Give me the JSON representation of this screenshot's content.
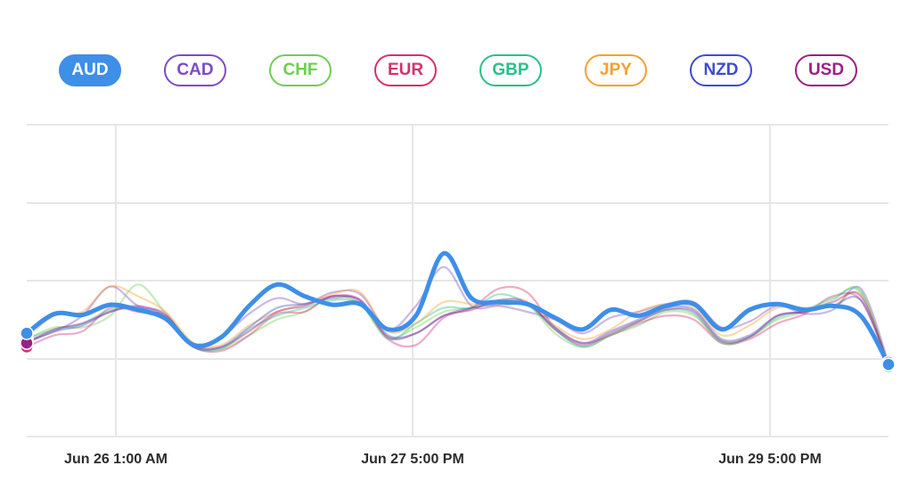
{
  "chart_data": {
    "type": "line",
    "x_ticks": [
      "Jun 26 1:00 AM",
      "Jun 27 5:00 PM",
      "Jun 29 5:00 PM"
    ],
    "active_series": "AUD",
    "grid": true,
    "series": [
      {
        "name": "AUD",
        "color": "#3d8fe8",
        "values": [
          26.5,
          31.5,
          31.2,
          33.8,
          32.5,
          30.2,
          23.5,
          25.5,
          33.5,
          39.0,
          36.0,
          33.8,
          34.0,
          27.5,
          31.0,
          47.0,
          35.5,
          34.5,
          34.0,
          30.5,
          27.5,
          32.5,
          31.0,
          33.5,
          34.0,
          27.5,
          32.5,
          34.0,
          32.5,
          33.5,
          31.0,
          18.5
        ]
      },
      {
        "name": "CAD",
        "color": "#7d4bc6",
        "values": [
          24.5,
          27.0,
          31.0,
          38.5,
          33.5,
          31.5,
          23.0,
          25.5,
          31.5,
          35.5,
          34.0,
          37.0,
          36.5,
          27.5,
          33.5,
          43.5,
          33.5,
          33.5,
          32.0,
          30.0,
          26.5,
          30.5,
          32.0,
          34.0,
          34.5,
          28.0,
          29.5,
          33.5,
          31.5,
          32.5,
          38.0,
          19.0
        ]
      },
      {
        "name": "CHF",
        "color": "#6fcf4f",
        "values": [
          25.0,
          28.0,
          28.0,
          31.0,
          39.0,
          31.5,
          23.5,
          22.5,
          26.0,
          30.0,
          32.0,
          36.0,
          34.0,
          25.5,
          28.0,
          32.0,
          33.0,
          35.0,
          34.0,
          26.5,
          23.0,
          26.0,
          28.5,
          32.0,
          31.0,
          24.5,
          25.5,
          30.0,
          32.0,
          35.0,
          37.5,
          18.0
        ]
      },
      {
        "name": "EUR",
        "color": "#d6306e",
        "values": [
          23.0,
          26.0,
          27.0,
          33.0,
          32.0,
          31.0,
          23.0,
          22.0,
          26.0,
          31.5,
          32.0,
          36.0,
          34.5,
          25.0,
          23.5,
          30.5,
          33.0,
          38.0,
          37.0,
          28.0,
          24.0,
          26.0,
          29.0,
          31.0,
          30.0,
          24.0,
          25.0,
          29.0,
          31.5,
          36.0,
          35.0,
          18.5
        ]
      },
      {
        "name": "GBP",
        "color": "#2bbf8a",
        "values": [
          25.0,
          27.5,
          29.0,
          32.5,
          33.0,
          30.0,
          23.0,
          22.5,
          27.5,
          31.0,
          33.0,
          35.0,
          34.0,
          25.0,
          29.0,
          33.0,
          33.0,
          36.5,
          34.0,
          27.5,
          23.0,
          26.0,
          29.5,
          32.5,
          31.5,
          24.0,
          25.5,
          30.5,
          32.5,
          35.5,
          37.0,
          18.0
        ]
      },
      {
        "name": "JPY",
        "color": "#f5a030",
        "values": [
          25.5,
          31.0,
          32.0,
          38.5,
          36.0,
          32.0,
          24.0,
          23.5,
          28.5,
          32.0,
          34.0,
          36.5,
          37.0,
          27.0,
          29.0,
          34.5,
          34.0,
          33.5,
          34.0,
          28.5,
          25.0,
          27.5,
          32.0,
          34.0,
          33.0,
          26.0,
          28.5,
          33.0,
          33.0,
          33.5,
          36.5,
          18.5
        ]
      },
      {
        "name": "NZD",
        "color": "#3f4bcf",
        "values": [
          24.0,
          27.0,
          28.5,
          32.0,
          33.0,
          30.5,
          23.0,
          23.0,
          28.0,
          33.0,
          34.0,
          35.5,
          35.0,
          26.0,
          26.5,
          31.0,
          33.0,
          34.0,
          34.0,
          28.0,
          24.0,
          27.0,
          30.0,
          33.0,
          32.5,
          25.0,
          26.0,
          31.0,
          32.0,
          33.5,
          35.0,
          18.5
        ]
      },
      {
        "name": "USD",
        "color": "#9b1f86",
        "values": [
          24.0,
          27.5,
          29.0,
          32.0,
          33.5,
          31.0,
          23.5,
          23.0,
          27.0,
          32.0,
          33.5,
          36.0,
          35.0,
          25.5,
          26.5,
          31.0,
          32.5,
          35.0,
          34.5,
          27.5,
          23.5,
          26.5,
          29.5,
          32.5,
          32.0,
          24.5,
          25.5,
          31.0,
          32.0,
          34.5,
          36.0,
          18.5
        ]
      }
    ]
  }
}
